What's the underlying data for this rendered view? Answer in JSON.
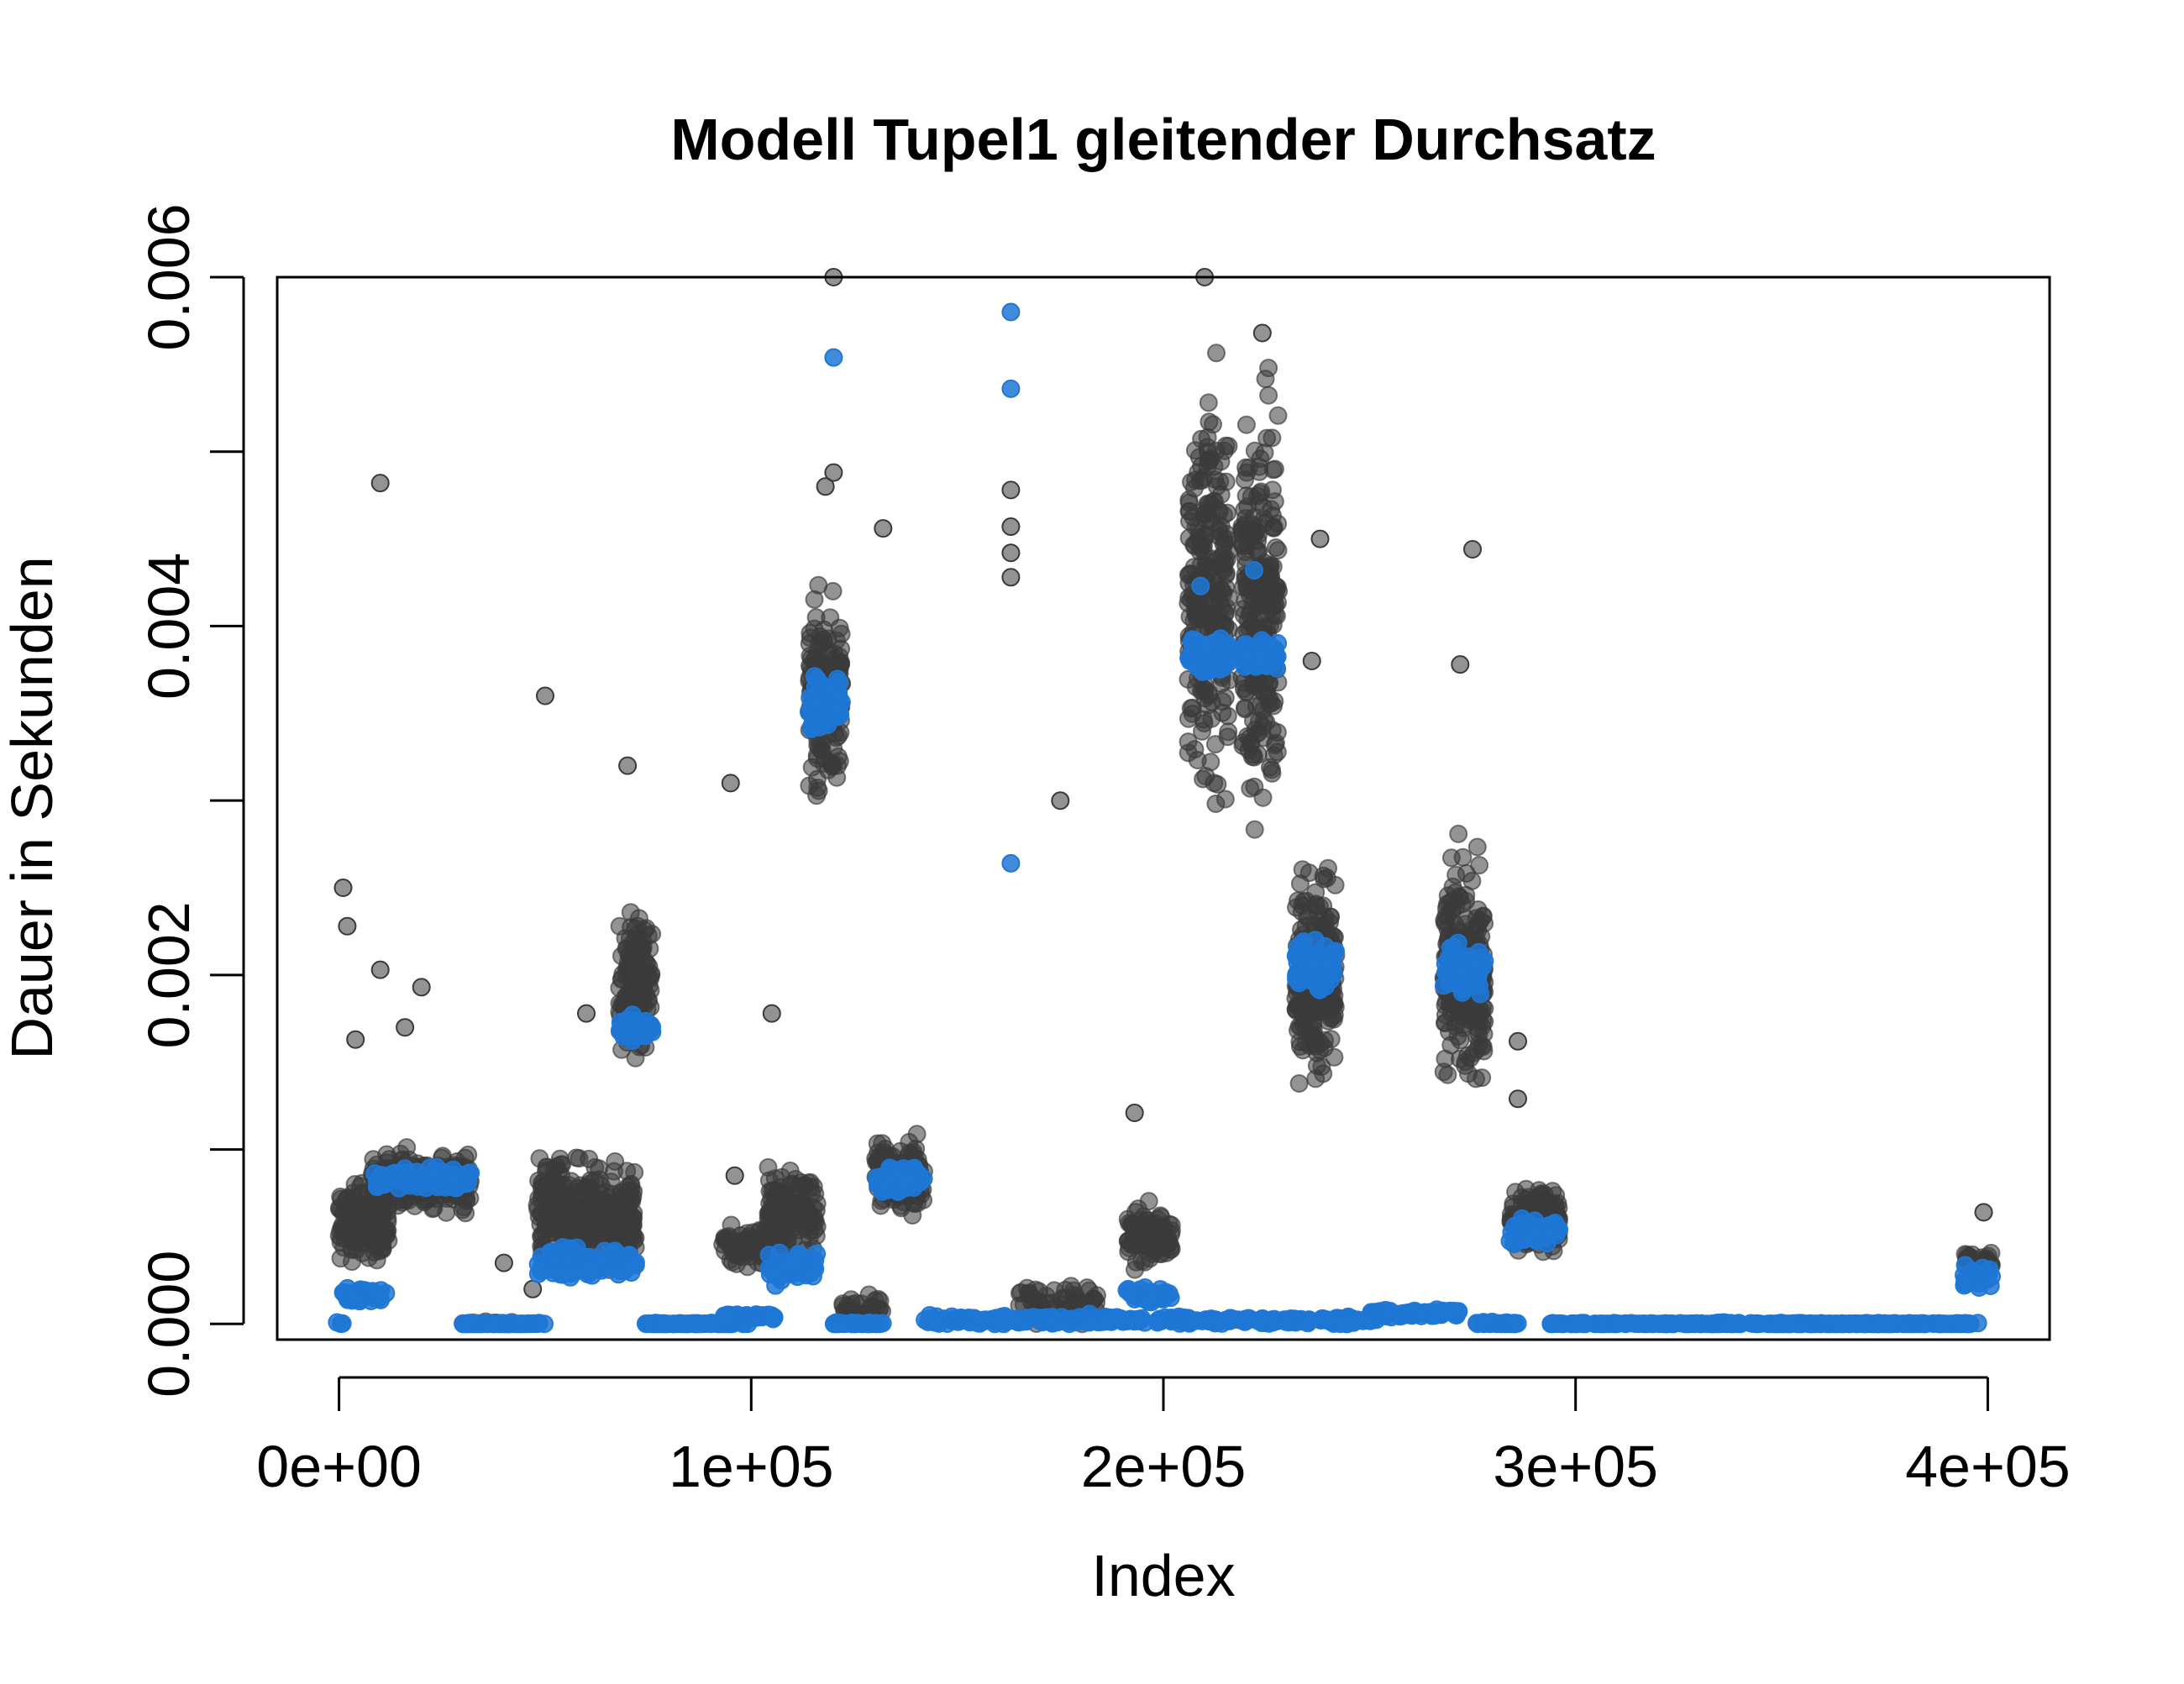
{
  "chart_data": {
    "type": "scatter",
    "title": "Modell Tupel1 gleitender Durchsatz",
    "xlabel": "Index",
    "ylabel": "Dauer in Sekunden",
    "xlim": [
      -15000,
      415000
    ],
    "ylim": [
      -9e-05,
      0.006
    ],
    "x_ticks": [
      0,
      100000,
      200000,
      300000,
      400000
    ],
    "x_tick_labels": [
      "0e+00",
      "1e+05",
      "2e+05",
      "3e+05",
      "4e+05"
    ],
    "y_ticks": [
      0.0,
      0.001,
      0.002,
      0.003,
      0.004,
      0.005,
      0.006
    ],
    "y_tick_labels": [
      "0.000",
      "",
      "0.002",
      "",
      "0.004",
      "",
      "0.006"
    ],
    "grid": false,
    "legend": "none",
    "colors": {
      "raw": "#3a3a3a",
      "smoothed": "#1f77d4",
      "axis": "#000000"
    },
    "series": [
      {
        "color": "#3a3a3a",
        "opacity": 0.55,
        "clusters": [
          {
            "x_range": [
              0,
              12000
            ],
            "y_center": 0.00058,
            "y_spread": 0.00016,
            "count": 160
          },
          {
            "x_range": [
              8000,
              32000
            ],
            "y_center": 0.00082,
            "y_spread": 0.00012,
            "count": 260
          },
          {
            "x_range": [
              30000,
              42000
            ],
            "y_center": 0.0,
            "y_spread": 1e-05,
            "count": 30
          },
          {
            "x_range": [
              48000,
              72000
            ],
            "y_center": 0.00062,
            "y_spread": 0.00022,
            "count": 320
          },
          {
            "x_range": [
              68000,
              76000
            ],
            "y_center": 0.00195,
            "y_spread": 0.0003,
            "count": 140
          },
          {
            "x_range": [
              93000,
              104000
            ],
            "y_center": 0.00045,
            "y_spread": 0.0001,
            "count": 80
          },
          {
            "x_range": [
              104000,
              116000
            ],
            "y_center": 0.00065,
            "y_spread": 0.00018,
            "count": 150
          },
          {
            "x_range": [
              114000,
              122000
            ],
            "y_center": 0.0036,
            "y_spread": 0.00036,
            "count": 180
          },
          {
            "x_range": [
              122000,
              132000
            ],
            "y_center": 8e-05,
            "y_spread": 6e-05,
            "count": 40
          },
          {
            "x_range": [
              130000,
              142000
            ],
            "y_center": 0.00085,
            "y_spread": 0.00016,
            "count": 130
          },
          {
            "x_range": [
              164000,
              184000
            ],
            "y_center": 0.0001,
            "y_spread": 0.0001,
            "count": 60
          },
          {
            "x_range": [
              191000,
              202000
            ],
            "y_center": 0.0005,
            "y_spread": 0.00012,
            "count": 90
          },
          {
            "x_range": [
              206000,
              216000
            ],
            "y_center": 0.0042,
            "y_spread": 0.0008,
            "count": 260
          },
          {
            "x_range": [
              219000,
              228000
            ],
            "y_center": 0.0041,
            "y_spread": 0.0008,
            "count": 260
          },
          {
            "x_range": [
              232000,
              242000
            ],
            "y_center": 0.002,
            "y_spread": 0.00045,
            "count": 240
          },
          {
            "x_range": [
              268000,
              278000
            ],
            "y_center": 0.002,
            "y_spread": 0.00045,
            "count": 240
          },
          {
            "x_range": [
              284000,
              296000
            ],
            "y_center": 0.0006,
            "y_spread": 0.00013,
            "count": 150
          },
          {
            "x_range": [
              394000,
              401000
            ],
            "y_center": 0.00035,
            "y_spread": 6e-05,
            "count": 40
          }
        ],
        "outliers": [
          {
            "x": 1000,
            "y": 0.0025
          },
          {
            "x": 2000,
            "y": 0.00228
          },
          {
            "x": 4000,
            "y": 0.00163
          },
          {
            "x": 10000,
            "y": 0.00482
          },
          {
            "x": 10000,
            "y": 0.00203
          },
          {
            "x": 20000,
            "y": 0.00193
          },
          {
            "x": 16000,
            "y": 0.0017
          },
          {
            "x": 40000,
            "y": 0.00035
          },
          {
            "x": 47000,
            "y": 0.0002
          },
          {
            "x": 50000,
            "y": 0.0036
          },
          {
            "x": 60000,
            "y": 0.00178
          },
          {
            "x": 70000,
            "y": 0.0032
          },
          {
            "x": 95000,
            "y": 0.0031
          },
          {
            "x": 105000,
            "y": 0.00178
          },
          {
            "x": 96000,
            "y": 0.00085
          },
          {
            "x": 120000,
            "y": 0.006
          },
          {
            "x": 120000,
            "y": 0.00488
          },
          {
            "x": 118000,
            "y": 0.0048
          },
          {
            "x": 132000,
            "y": 0.00456
          },
          {
            "x": 163000,
            "y": 0.00478
          },
          {
            "x": 163000,
            "y": 0.00457
          },
          {
            "x": 163000,
            "y": 0.00442
          },
          {
            "x": 163000,
            "y": 0.00428
          },
          {
            "x": 175000,
            "y": 0.003
          },
          {
            "x": 193000,
            "y": 0.00121
          },
          {
            "x": 210000,
            "y": 0.006
          },
          {
            "x": 224000,
            "y": 0.00568
          },
          {
            "x": 238000,
            "y": 0.0045
          },
          {
            "x": 236000,
            "y": 0.0038
          },
          {
            "x": 272000,
            "y": 0.00378
          },
          {
            "x": 275000,
            "y": 0.00444
          },
          {
            "x": 286000,
            "y": 0.00162
          },
          {
            "x": 286000,
            "y": 0.00129
          },
          {
            "x": 399000,
            "y": 0.00064
          }
        ]
      },
      {
        "color": "#1f77d4",
        "opacity": 0.85,
        "clusters": [
          {
            "x_range": [
              -500,
              1000
            ],
            "y_center": 0.0,
            "y_spread": 1e-05,
            "count": 3
          },
          {
            "x_range": [
              0,
              12000
            ],
            "y_center": 0.00017,
            "y_spread": 3e-05,
            "count": 40
          },
          {
            "x_range": [
              8000,
              32000
            ],
            "y_center": 0.00083,
            "y_spread": 5e-05,
            "count": 90
          },
          {
            "x_range": [
              30000,
              50000
            ],
            "y_center": 0.0,
            "y_spread": 5e-06,
            "count": 60
          },
          {
            "x_range": [
              48000,
              72000
            ],
            "y_center": 0.00035,
            "y_spread": 6e-05,
            "count": 110
          },
          {
            "x_range": [
              68000,
              76000
            ],
            "y_center": 0.0017,
            "y_spread": 6e-05,
            "count": 40
          },
          {
            "x_range": [
              74000,
              100000
            ],
            "y_center": 0.0,
            "y_spread": 5e-06,
            "count": 70
          },
          {
            "x_range": [
              93000,
              106000
            ],
            "y_center": 4e-05,
            "y_spread": 2e-05,
            "count": 40
          },
          {
            "x_range": [
              104000,
              116000
            ],
            "y_center": 0.00032,
            "y_spread": 6e-05,
            "count": 60
          },
          {
            "x_range": [
              114000,
              122000
            ],
            "y_center": 0.00358,
            "y_spread": 0.00012,
            "count": 70
          },
          {
            "x_range": [
              120000,
              132000
            ],
            "y_center": 0.0,
            "y_spread": 5e-06,
            "count": 30
          },
          {
            "x_range": [
              130000,
              142000
            ],
            "y_center": 0.00083,
            "y_spread": 6e-05,
            "count": 60
          },
          {
            "x_range": [
              142000,
              196000
            ],
            "y_center": 2e-05,
            "y_spread": 2e-05,
            "count": 140
          },
          {
            "x_range": [
              191000,
              202000
            ],
            "y_center": 0.00017,
            "y_spread": 3e-05,
            "count": 40
          },
          {
            "x_range": [
              198000,
              236000
            ],
            "y_center": 2e-05,
            "y_spread": 1.5e-05,
            "count": 90
          },
          {
            "x_range": [
              206000,
              216000
            ],
            "y_center": 0.00383,
            "y_spread": 8e-05,
            "count": 60
          },
          {
            "x_range": [
              219000,
              228000
            ],
            "y_center": 0.00383,
            "y_spread": 8e-05,
            "count": 60
          },
          {
            "x_range": [
              232000,
              242000
            ],
            "y_center": 0.00205,
            "y_spread": 0.00011,
            "count": 70
          },
          {
            "x_range": [
              238000,
              252000
            ],
            "y_center": 2e-05,
            "y_spread": 1.5e-05,
            "count": 40
          },
          {
            "x_range": [
              250000,
              272000
            ],
            "y_center": 6e-05,
            "y_spread": 2e-05,
            "count": 70
          },
          {
            "x_range": [
              268000,
              278000
            ],
            "y_center": 0.00205,
            "y_spread": 0.00011,
            "count": 70
          },
          {
            "x_range": [
              276000,
              286000
            ],
            "y_center": 0.0,
            "y_spread": 8e-06,
            "count": 30
          },
          {
            "x_range": [
              284000,
              296000
            ],
            "y_center": 0.00053,
            "y_spread": 5e-05,
            "count": 60
          },
          {
            "x_range": [
              294000,
              398000
            ],
            "y_center": 0.0,
            "y_spread": 5e-06,
            "count": 260
          },
          {
            "x_range": [
              394000,
              401000
            ],
            "y_center": 0.00027,
            "y_spread": 6e-05,
            "count": 30
          }
        ],
        "outliers": [
          {
            "x": 120000,
            "y": 0.00554
          },
          {
            "x": 163000,
            "y": 0.0058
          },
          {
            "x": 163000,
            "y": 0.00536
          },
          {
            "x": 163000,
            "y": 0.00264
          },
          {
            "x": 209000,
            "y": 0.00423
          },
          {
            "x": 222000,
            "y": 0.00432
          }
        ]
      }
    ]
  }
}
